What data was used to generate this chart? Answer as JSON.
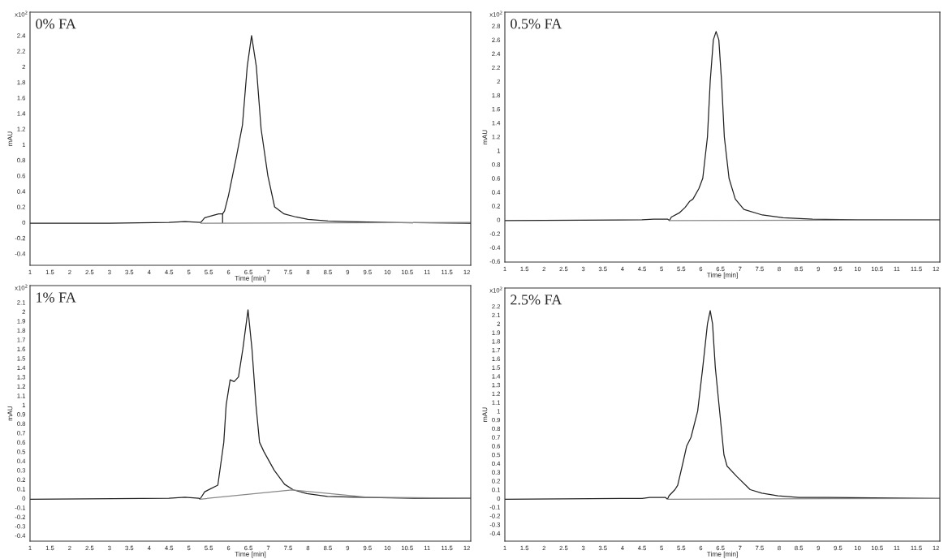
{
  "chart_data": [
    {
      "type": "line",
      "title": "0% FA",
      "xlabel": "Time [min]",
      "ylabel": "mAU",
      "annotations": [
        "x10$^{2}$"
      ],
      "xlim": [
        1,
        12.1
      ],
      "xticks": [
        1,
        1.5,
        2,
        2.5,
        3,
        3.5,
        4,
        4.5,
        5,
        5.5,
        6,
        6.5,
        7,
        7.5,
        8,
        8.5,
        9,
        9.5,
        10,
        10.5,
        11,
        11.5,
        12
      ],
      "ylim": [
        -0.55,
        2.7
      ],
      "yticks": [
        -0.4,
        -0.2,
        0,
        0.2,
        0.4,
        0.6,
        0.8,
        1,
        1.2,
        1.4,
        1.6,
        1.8,
        2,
        2.2,
        2.4
      ],
      "grid": false,
      "marker": "none",
      "line_style": "solid",
      "series": [
        {
          "color": "#222222",
          "x": [
            1,
            3,
            4.5,
            4.9,
            5.3,
            5.4,
            5.6,
            5.75,
            5.85,
            5.9,
            6.0,
            6.1,
            6.2,
            6.35,
            6.47,
            6.58,
            6.7,
            6.82,
            6.99,
            7.16,
            7.4,
            7.7,
            8.0,
            8.5,
            9,
            10,
            12.1
          ],
          "values": [
            -0.01,
            -0.01,
            0.0,
            0.01,
            0.0,
            0.06,
            0.09,
            0.11,
            0.11,
            0.15,
            0.35,
            0.6,
            0.85,
            1.25,
            2.0,
            2.4,
            2.0,
            1.2,
            0.6,
            0.2,
            0.11,
            0.07,
            0.04,
            0.02,
            0.01,
            0.0,
            -0.01
          ]
        },
        {
          "color": "#888888",
          "x": [
            5.3,
            12.1
          ],
          "values": [
            -0.01,
            0.0
          ]
        },
        {
          "color": "#222222",
          "x": [
            5.85,
            5.85
          ],
          "values": [
            0.0,
            0.11
          ]
        }
      ]
    },
    {
      "type": "line",
      "title": "0.5% FA",
      "xlabel": "Time [min]",
      "ylabel": "mAU",
      "annotations": [
        "x10$^{2}$"
      ],
      "xlim": [
        1,
        12.1
      ],
      "xticks": [
        1,
        1.5,
        2,
        2.5,
        3,
        3.5,
        4,
        4.5,
        5,
        5.5,
        6,
        6.5,
        7,
        7.5,
        8,
        8.5,
        9,
        9.5,
        10,
        10.5,
        11,
        11.5,
        12
      ],
      "ylim": [
        -0.61,
        3.0
      ],
      "yticks": [
        -0.6,
        -0.4,
        -0.2,
        0,
        0.2,
        0.4,
        0.6,
        0.8,
        1,
        1.2,
        1.4,
        1.6,
        1.8,
        2,
        2.2,
        2.4,
        2.6,
        2.8
      ],
      "grid": false,
      "marker": "none",
      "line_style": "solid",
      "series": [
        {
          "color": "#222222",
          "x": [
            1,
            4.5,
            4.8,
            5.15,
            5.2,
            5.25,
            5.45,
            5.6,
            5.72,
            5.8,
            5.95,
            6.05,
            6.17,
            6.24,
            6.32,
            6.39,
            6.46,
            6.53,
            6.6,
            6.72,
            6.88,
            7.1,
            7.57,
            8.1,
            8.85,
            10,
            12.1
          ],
          "values": [
            -0.01,
            0.0,
            0.01,
            0.01,
            -0.01,
            0.04,
            0.1,
            0.18,
            0.27,
            0.3,
            0.45,
            0.6,
            1.2,
            2.0,
            2.6,
            2.72,
            2.6,
            2.0,
            1.2,
            0.6,
            0.3,
            0.15,
            0.07,
            0.03,
            0.01,
            0.0,
            0.0
          ]
        },
        {
          "color": "#888888",
          "x": [
            5.2,
            12.1
          ],
          "values": [
            -0.01,
            0.0
          ]
        }
      ]
    },
    {
      "type": "line",
      "title": "1% FA",
      "xlabel": "Time [min]",
      "ylabel": "mAU",
      "annotations": [
        "x10$^{2}$"
      ],
      "xlim": [
        1,
        12.1
      ],
      "xticks": [
        1,
        1.5,
        2,
        2.5,
        3,
        3.5,
        4,
        4.5,
        5,
        5.5,
        6,
        6.5,
        7,
        7.5,
        8,
        8.5,
        9,
        9.5,
        10,
        10.5,
        11,
        11.5,
        12
      ],
      "ylim": [
        -0.46,
        2.28
      ],
      "yticks": [
        -0.4,
        -0.3,
        -0.2,
        -0.1,
        0,
        0.1,
        0.2,
        0.3,
        0.4,
        0.5,
        0.6,
        0.7,
        0.8,
        0.9,
        1,
        1.1,
        1.2,
        1.3,
        1.4,
        1.5,
        1.6,
        1.7,
        1.8,
        1.9,
        2,
        2.1
      ],
      "grid": false,
      "marker": "none",
      "line_style": "solid",
      "series": [
        {
          "color": "#222222",
          "x": [
            1,
            4.5,
            4.9,
            5.25,
            5.28,
            5.4,
            5.54,
            5.73,
            5.88,
            5.94,
            6.04,
            6.14,
            6.25,
            6.36,
            6.49,
            6.59,
            6.69,
            6.78,
            6.89,
            7.15,
            7.41,
            7.63,
            7.97,
            8.49,
            9.24,
            10.7,
            12.1
          ],
          "values": [
            -0.01,
            0.0,
            0.01,
            0.0,
            -0.01,
            0.07,
            0.1,
            0.14,
            0.6,
            1.0,
            1.27,
            1.25,
            1.3,
            1.6,
            2.02,
            1.6,
            1.0,
            0.6,
            0.5,
            0.3,
            0.15,
            0.09,
            0.05,
            0.02,
            0.01,
            0.0,
            0.0
          ]
        },
        {
          "color": "#888888",
          "x": [
            5.28,
            7.6,
            9.5,
            12.1
          ],
          "values": [
            -0.01,
            0.09,
            0.01,
            0.0
          ]
        }
      ]
    },
    {
      "type": "line",
      "title": "2.5% FA",
      "xlabel": "Time [min]",
      "ylabel": "mAU",
      "annotations": [
        "x10$^{2}$"
      ],
      "xlim": [
        1,
        12.1
      ],
      "xticks": [
        1,
        1.5,
        2,
        2.5,
        3,
        3.5,
        4,
        4.5,
        5,
        5.5,
        6,
        6.5,
        7,
        7.5,
        8,
        8.5,
        9,
        9.5,
        10,
        10.5,
        11,
        11.5,
        12
      ],
      "ylim": [
        -0.49,
        2.41
      ],
      "yticks": [
        -0.4,
        -0.3,
        -0.2,
        -0.1,
        0,
        0.1,
        0.2,
        0.3,
        0.4,
        0.5,
        0.6,
        0.7,
        0.8,
        0.9,
        1,
        1.1,
        1.2,
        1.3,
        1.4,
        1.5,
        1.6,
        1.7,
        1.8,
        1.9,
        2,
        2.1,
        2.2
      ],
      "grid": false,
      "marker": "none",
      "line_style": "solid",
      "series": [
        {
          "color": "#222222",
          "x": [
            1,
            4.5,
            4.7,
            5.1,
            5.15,
            5.19,
            5.34,
            5.41,
            5.54,
            5.64,
            5.75,
            5.92,
            6.05,
            6.17,
            6.24,
            6.3,
            6.37,
            6.48,
            6.59,
            6.67,
            6.92,
            7.26,
            7.56,
            7.97,
            8.5,
            9.25,
            12.1
          ],
          "values": [
            -0.01,
            0.0,
            0.01,
            0.01,
            -0.01,
            0.03,
            0.1,
            0.15,
            0.4,
            0.6,
            0.7,
            1.0,
            1.5,
            2.0,
            2.15,
            2.0,
            1.5,
            1.0,
            0.5,
            0.37,
            0.25,
            0.1,
            0.06,
            0.03,
            0.01,
            0.01,
            0.0
          ]
        },
        {
          "color": "#888888",
          "x": [
            5.15,
            12.1
          ],
          "values": [
            -0.01,
            0.0
          ]
        }
      ]
    }
  ]
}
